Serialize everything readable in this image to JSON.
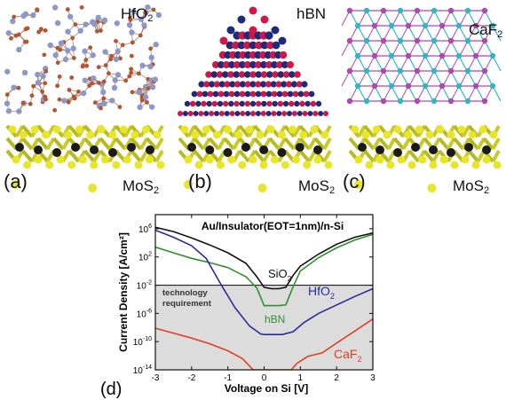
{
  "panels": [
    {
      "id": "a",
      "label": "(a)",
      "insulator": {
        "base": "HfO",
        "sub": "2"
      },
      "substrate": {
        "base": "MoS",
        "sub": "2"
      }
    },
    {
      "id": "b",
      "label": "(b)",
      "insulator": {
        "base": "hBN",
        "sub": ""
      },
      "substrate": {
        "base": "MoS",
        "sub": "2"
      }
    },
    {
      "id": "c",
      "label": "(c)",
      "insulator": {
        "base": "CaF",
        "sub": "2"
      },
      "substrate": {
        "base": "MoS",
        "sub": "2"
      }
    }
  ],
  "colors": {
    "hfo2_atom_a": "#8e98c8",
    "hfo2_atom_b": "#b5542e",
    "hbn_atom_a": "#1e2a7a",
    "hbn_atom_b": "#d01848",
    "caf2_atom_a": "#2fb8c4",
    "caf2_atom_b": "#b048b0",
    "mos2_s": "#e7e62a",
    "mos2_mo": "#1a1a1a"
  },
  "chart_data": {
    "type": "line",
    "panel_label": "(d)",
    "title": "Au/Insulator(EOT=1nm)/n-Si",
    "xlabel": "Voltage on Si [V]",
    "ylabel": "Current Density [A/cm²]",
    "xlim": [
      -3,
      3
    ],
    "ylim_log10": [
      -14,
      8
    ],
    "log_y": true,
    "xticks": [
      -3,
      -2,
      -1,
      0,
      1,
      2,
      3
    ],
    "yticks": [
      {
        "base": "10",
        "exp": "6"
      },
      {
        "base": "10",
        "exp": "2"
      },
      {
        "base": "10",
        "exp": "-2"
      },
      {
        "base": "10",
        "exp": "-6"
      },
      {
        "base": "10",
        "exp": "-10"
      },
      {
        "base": "10",
        "exp": "-14"
      }
    ],
    "ytick_values_log10": [
      6,
      2,
      -2,
      -6,
      -10,
      -14
    ],
    "requirement": {
      "label_line1": "technology",
      "label_line2": "requirement",
      "threshold_log10": -2,
      "fill": "#dcdcdc"
    },
    "series": [
      {
        "name": "SiO2",
        "label_base": "SiO",
        "label_sub": "2",
        "color": "#111111",
        "x": [
          -3,
          -2.5,
          -2,
          -1.5,
          -1,
          -0.5,
          -0.2,
          0,
          0.2,
          0.4,
          0.6,
          0.8,
          1,
          1.5,
          2,
          2.5,
          3
        ],
        "log10y": [
          6.2,
          5.6,
          4.7,
          3.7,
          2.6,
          1.1,
          -0.8,
          -2.3,
          -2.5,
          -2.5,
          -2.3,
          -0.6,
          0.7,
          2.4,
          3.8,
          4.8,
          5.4
        ]
      },
      {
        "name": "hBN",
        "label_base": "hBN",
        "label_sub": "",
        "color": "#2f8f2f",
        "x": [
          -3,
          -2.5,
          -2,
          -1.5,
          -1,
          -0.5,
          -0.2,
          0,
          0.2,
          0.4,
          0.6,
          0.8,
          1,
          1.5,
          2,
          2.5,
          3
        ],
        "log10y": [
          3.4,
          2.6,
          1.8,
          1.2,
          0.5,
          -0.8,
          -2.4,
          -4.9,
          -4.9,
          -4.9,
          -4.8,
          -2.2,
          0.0,
          1.9,
          3.3,
          4.4,
          5.2
        ]
      },
      {
        "name": "HfO2",
        "label_base": "HfO",
        "label_sub": "2",
        "color": "#2b2b9e",
        "x": [
          -3,
          -2.5,
          -2,
          -1.6,
          -1.2,
          -0.8,
          -0.4,
          -0.1,
          0,
          0.5,
          0.8,
          1.1,
          1.5,
          2,
          2.5,
          3
        ],
        "log10y": [
          5.8,
          4.8,
          3.6,
          1.8,
          -1.8,
          -5.2,
          -7.8,
          -8.9,
          -9.0,
          -9.0,
          -8.6,
          -7.3,
          -6.0,
          -4.8,
          -3.6,
          -2.5
        ]
      },
      {
        "name": "CaF2",
        "label_base": "CaF",
        "label_sub": "2",
        "color": "#e0401e",
        "x": [
          -3,
          -2.5,
          -2,
          -1.5,
          -1,
          -0.6,
          -0.3,
          0.75,
          0.9,
          1.2,
          1.6,
          2,
          2.5,
          3
        ],
        "log10y": [
          -8.1,
          -8.8,
          -9.5,
          -10.3,
          -11.3,
          -12.4,
          -14,
          -14,
          -13.1,
          -12.1,
          -11.6,
          -10.2,
          -8.5,
          -6.8
        ]
      }
    ]
  }
}
